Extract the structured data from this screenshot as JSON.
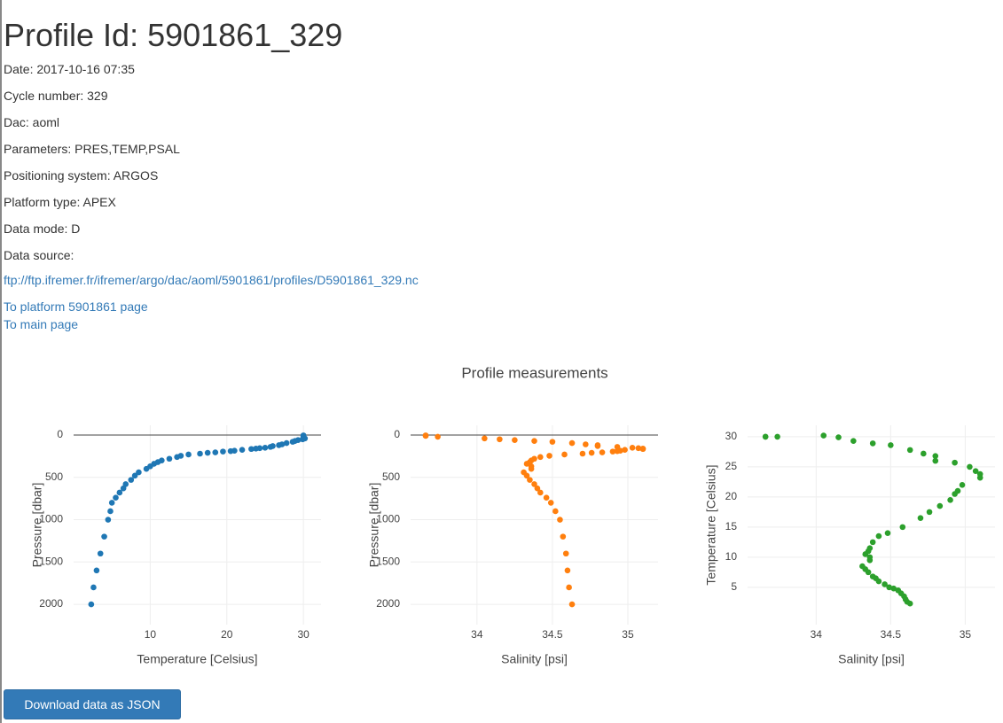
{
  "header": {
    "title": "Profile Id: 5901861_329"
  },
  "details": [
    "Date: 2017-10-16 07:35",
    "Cycle number: 329",
    "Dac: aoml",
    "Parameters: PRES,TEMP,PSAL",
    "Positioning system: ARGOS",
    "Platform type: APEX",
    "Data mode: D",
    "Data source:"
  ],
  "links": {
    "source": "ftp://ftp.ifremer.fr/ifremer/argo/dac/aoml/5901861/profiles/D5901861_329.nc",
    "platform": "To platform 5901861 page",
    "main": "To main page"
  },
  "figure": {
    "title": "Profile measurements"
  },
  "button": {
    "label": "Download data as JSON"
  },
  "chart_data": [
    {
      "type": "scatter",
      "color": "#1f77b4",
      "xlabel": "Temperature [Celsius]",
      "ylabel": "Pressure [dbar]",
      "xlim": [
        0,
        32.3
      ],
      "ylim": [
        2240,
        -115
      ],
      "xticks": [
        10,
        20,
        30
      ],
      "yticks": [
        0,
        500,
        1000,
        1500,
        2000
      ],
      "grid": true,
      "zeroline": true,
      "x": [
        30.0,
        30.0,
        30.0,
        30.2,
        29.9,
        29.3,
        28.9,
        28.6,
        27.8,
        27.2,
        26.8,
        26.0,
        25.7,
        25.0,
        24.3,
        23.8,
        23.2,
        22.0,
        21.0,
        20.5,
        19.5,
        18.5,
        17.5,
        16.5,
        15.0,
        14.0,
        13.5,
        12.5,
        11.5,
        11.0,
        10.5,
        10.0,
        9.5,
        8.5,
        8.0,
        7.5,
        6.8,
        6.5,
        6.0,
        5.5,
        5.0,
        4.8,
        4.5,
        4.0,
        3.5,
        3.0,
        2.6,
        2.3
      ],
      "values": [
        4,
        10,
        20,
        40,
        50,
        60,
        70,
        80,
        95,
        110,
        120,
        130,
        140,
        150,
        155,
        160,
        165,
        175,
        185,
        190,
        195,
        205,
        210,
        220,
        230,
        245,
        260,
        280,
        300,
        320,
        340,
        370,
        400,
        440,
        480,
        530,
        580,
        630,
        680,
        740,
        800,
        900,
        1000,
        1200,
        1400,
        1600,
        1800,
        2000
      ]
    },
    {
      "type": "scatter",
      "color": "#ff7f0e",
      "xlabel": "Salinity [psi]",
      "ylabel": "Pressure [dbar]",
      "xlim": [
        33.56,
        35.2
      ],
      "ylim": [
        2240,
        -115
      ],
      "xticks": [
        34,
        34.5,
        35
      ],
      "yticks": [
        0,
        500,
        1000,
        1500,
        2000
      ],
      "grid": true,
      "zeroline": true,
      "x": [
        33.66,
        33.66,
        33.74,
        34.05,
        34.15,
        34.25,
        34.38,
        34.5,
        34.63,
        34.72,
        34.8,
        34.8,
        34.93,
        35.03,
        35.07,
        35.1,
        35.1,
        34.98,
        34.95,
        34.93,
        34.9,
        34.83,
        34.76,
        34.7,
        34.58,
        34.48,
        34.42,
        34.38,
        34.36,
        34.35,
        34.33,
        34.36,
        34.36,
        34.31,
        34.33,
        34.35,
        34.38,
        34.4,
        34.42,
        34.46,
        34.49,
        34.52,
        34.55,
        34.57,
        34.59,
        34.6,
        34.61,
        34.63
      ],
      "values": [
        4,
        10,
        20,
        40,
        50,
        60,
        70,
        80,
        95,
        110,
        120,
        130,
        140,
        150,
        155,
        160,
        165,
        175,
        185,
        190,
        195,
        205,
        210,
        220,
        230,
        245,
        260,
        280,
        300,
        320,
        340,
        370,
        400,
        440,
        480,
        530,
        580,
        630,
        680,
        740,
        800,
        900,
        1000,
        1200,
        1400,
        1600,
        1800,
        2000
      ]
    },
    {
      "type": "scatter",
      "color": "#2ca02c",
      "xlabel": "Salinity [psi]",
      "ylabel": "Temperature [Celsius]",
      "xlim": [
        33.54,
        35.2
      ],
      "ylim": [
        -1.2,
        31.9
      ],
      "xticks": [
        34,
        34.5,
        35
      ],
      "yticks": [
        5,
        10,
        15,
        20,
        25,
        30
      ],
      "grid": true,
      "zeroline": false,
      "x": [
        33.66,
        33.66,
        33.74,
        34.05,
        34.15,
        34.25,
        34.38,
        34.5,
        34.63,
        34.72,
        34.8,
        34.8,
        34.93,
        35.03,
        35.07,
        35.1,
        35.1,
        34.98,
        34.95,
        34.93,
        34.9,
        34.83,
        34.76,
        34.7,
        34.58,
        34.48,
        34.42,
        34.38,
        34.36,
        34.35,
        34.33,
        34.36,
        34.36,
        34.31,
        34.33,
        34.35,
        34.38,
        34.4,
        34.42,
        34.46,
        34.49,
        34.52,
        34.55,
        34.57,
        34.59,
        34.6,
        34.61,
        34.63
      ],
      "values": [
        30.0,
        30.0,
        30.0,
        30.2,
        29.9,
        29.3,
        28.9,
        28.6,
        27.8,
        27.2,
        26.8,
        26.0,
        25.7,
        25.0,
        24.3,
        23.8,
        23.2,
        22.0,
        21.0,
        20.5,
        19.5,
        18.5,
        17.5,
        16.5,
        15.0,
        14.0,
        13.5,
        12.5,
        11.5,
        11.0,
        10.5,
        10.0,
        9.5,
        8.5,
        8.0,
        7.5,
        6.8,
        6.5,
        6.0,
        5.5,
        5.0,
        4.8,
        4.5,
        4.0,
        3.5,
        3.0,
        2.6,
        2.3
      ]
    }
  ]
}
